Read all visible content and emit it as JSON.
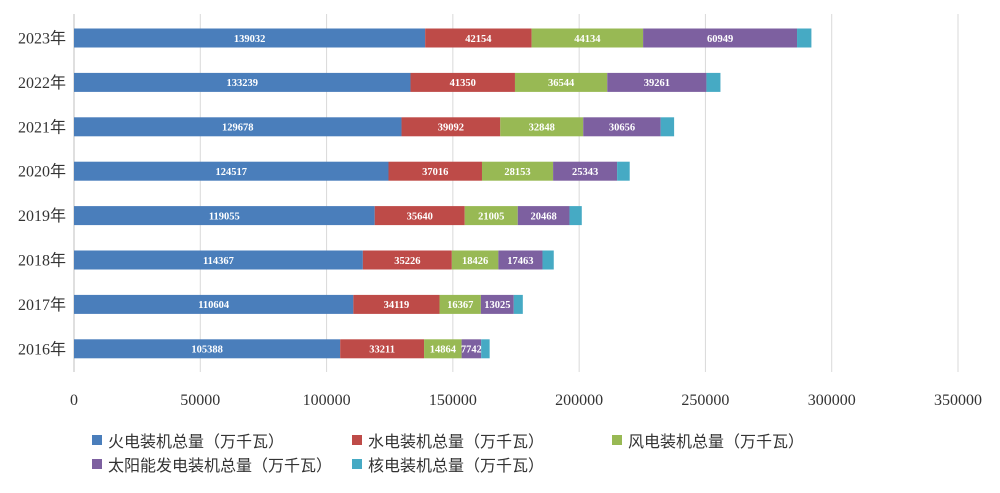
{
  "chart_data": {
    "type": "bar",
    "orientation": "horizontal",
    "stacked": true,
    "categories": [
      "2023年",
      "2022年",
      "2021年",
      "2020年",
      "2019年",
      "2018年",
      "2017年",
      "2016年"
    ],
    "series": [
      {
        "name": "火电装机总量（万千瓦）",
        "color": "#4a7ebb",
        "values": [
          139032,
          133239,
          129678,
          124517,
          119055,
          114367,
          110604,
          105388
        ],
        "labels": [
          "139032",
          "133239",
          "129678",
          "124517",
          "119055",
          "114367",
          "110604",
          "105388"
        ]
      },
      {
        "name": "水电装机总量（万千瓦）",
        "color": "#be4b48",
        "values": [
          42154,
          41350,
          39092,
          37016,
          35640,
          35226,
          34119,
          33211
        ],
        "labels": [
          "42154",
          "41350",
          "39092",
          "37016",
          "35640",
          "35226",
          "34119",
          "33211"
        ]
      },
      {
        "name": "风电装机总量（万千瓦）",
        "color": "#98b954",
        "values": [
          44134,
          36544,
          32848,
          28153,
          21005,
          18426,
          16367,
          14864
        ],
        "labels": [
          "44134",
          "36544",
          "32848",
          "28153",
          "21005",
          "18426",
          "16367",
          "14864"
        ]
      },
      {
        "name": "太阳能发电装机总量（万千瓦）",
        "color": "#7d60a0",
        "values": [
          60949,
          39261,
          30656,
          25343,
          20468,
          17463,
          13025,
          7742
        ],
        "labels": [
          "60949",
          "39261",
          "30656",
          "25343",
          "20468",
          "17463",
          "13025",
          "7742"
        ]
      },
      {
        "name": "核电装机总量（万千瓦）",
        "color": "#46aac4",
        "values": [
          5691,
          5553,
          5326,
          4989,
          4874,
          4466,
          3582,
          3364
        ],
        "labels": []
      }
    ],
    "xlim": [
      0,
      350000
    ],
    "xticks": [
      0,
      50000,
      100000,
      150000,
      200000,
      250000,
      300000,
      350000
    ],
    "xtick_labels": [
      "0",
      "50000",
      "100000",
      "150000",
      "200000",
      "250000",
      "300000",
      "350000"
    ],
    "grid": "vertical",
    "legend_position": "bottom"
  }
}
